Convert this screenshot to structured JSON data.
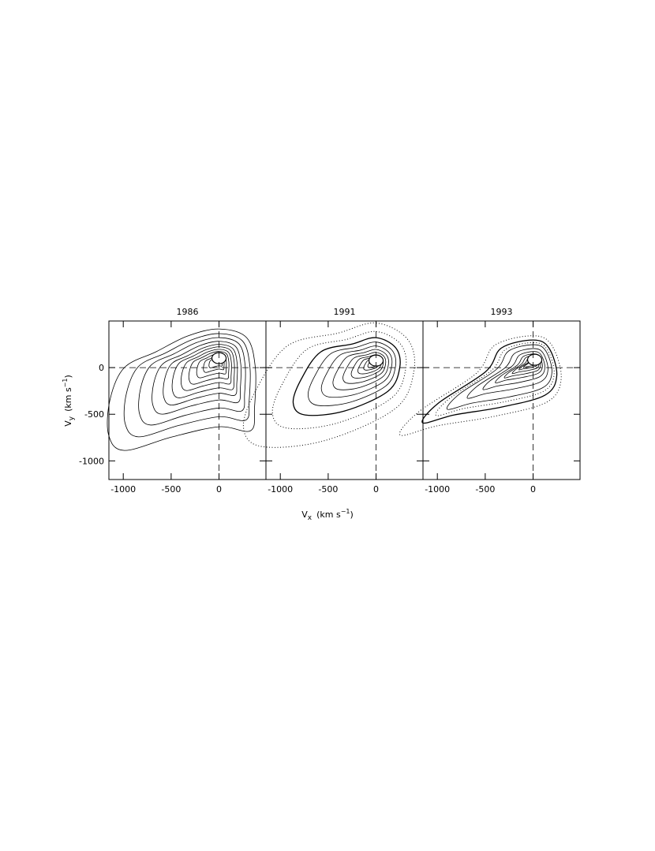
{
  "chart_data": [
    {
      "type": "contour",
      "title": "1986",
      "xlim": [
        -1150,
        490
      ],
      "ylim": [
        -1200,
        500
      ],
      "xticks": [
        -1000,
        -500,
        0
      ],
      "yticks": [
        -1000,
        -500,
        0
      ]
    },
    {
      "type": "contour",
      "title": "1991",
      "xlim": [
        -1150,
        490
      ],
      "ylim": [
        -1200,
        500
      ],
      "xticks": [
        -1000,
        -500,
        0
      ]
    },
    {
      "type": "contour",
      "title": "1993",
      "xlim": [
        -1150,
        490
      ],
      "ylim": [
        -1200,
        500
      ],
      "xticks": [
        -1000,
        -500,
        0
      ]
    }
  ],
  "x_label": {
    "symbol": "V",
    "subscript": "x",
    "unit": "(km s",
    "exponent": "−1",
    "close": ")"
  },
  "y_label": {
    "symbol": "V",
    "subscript": "y",
    "unit": "(km s",
    "exponent": "−1",
    "close": ")"
  }
}
